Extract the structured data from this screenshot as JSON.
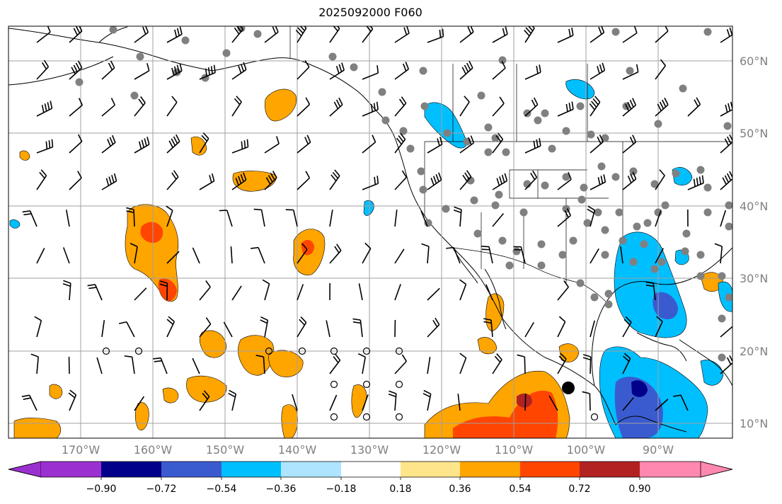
{
  "title": "2025092000 F060",
  "lat_labels": [
    "60°N",
    "50°N",
    "40°N",
    "30°N",
    "20°N",
    "10°N"
  ],
  "lon_labels": [
    "170°W",
    "160°W",
    "150°W",
    "140°W",
    "130°W",
    "120°W",
    "110°W",
    "100°W",
    "90°W"
  ],
  "colorbar": {
    "tick_labels": [
      "−0.90",
      "−0.72",
      "−0.54",
      "−0.36",
      "−0.18",
      "0.18",
      "0.36",
      "0.54",
      "0.72",
      "0.90"
    ],
    "colors": [
      "#9b30d0",
      "#00008b",
      "#3a5bd0",
      "#00bfff",
      "#aee4ff",
      "#ffffff",
      "#ffe58a",
      "#ffa500",
      "#ff4500",
      "#b22222",
      "#ff88b0"
    ]
  },
  "field_colors": {
    "land_outline": "#000000",
    "grid": "#a0a0a0",
    "station_dot": "#808080",
    "contour": "#000000"
  }
}
